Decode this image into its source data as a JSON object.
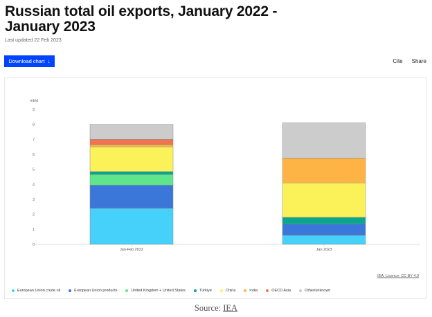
{
  "header": {
    "title": "Russian total oil exports, January 2022 - January 2023",
    "updated": "Last updated 22 Feb 2023"
  },
  "toolbar": {
    "download_label": "Download chart",
    "cite_label": "Cite",
    "share_label": "Share"
  },
  "license": "IEA. Licence: CC BY 4.0",
  "source": {
    "prefix": "Source:",
    "link": "IEA"
  },
  "chart_data": {
    "type": "bar",
    "stacked": true,
    "unit_label": "mb/d",
    "categories": [
      "Jan-Feb 2022",
      "Jan 2023"
    ],
    "ylim": [
      0,
      9
    ],
    "yticks": [
      0,
      1,
      2,
      3,
      4,
      5,
      6,
      7,
      8,
      9
    ],
    "grid": false,
    "legend_position": "bottom",
    "series": [
      {
        "name": "European Union crude oil",
        "color": "#46d1fb",
        "values": [
          2.4,
          0.6
        ]
      },
      {
        "name": "European Union products",
        "color": "#3a77d8",
        "values": [
          1.55,
          0.75
        ]
      },
      {
        "name": "United Kingdom + United States",
        "color": "#5fe68c",
        "values": [
          0.7,
          0
        ]
      },
      {
        "name": "Türkiye",
        "color": "#0aa58f",
        "values": [
          0.2,
          0.45
        ]
      },
      {
        "name": "China",
        "color": "#fbf158",
        "values": [
          1.65,
          2.3
        ]
      },
      {
        "name": "India",
        "color": "#fdb444",
        "values": [
          0.15,
          1.65
        ]
      },
      {
        "name": "OECD Asia",
        "color": "#f07450",
        "values": [
          0.35,
          0
        ]
      },
      {
        "name": "Other/unknown",
        "color": "#cccccc",
        "values": [
          1.0,
          2.35
        ]
      }
    ]
  }
}
